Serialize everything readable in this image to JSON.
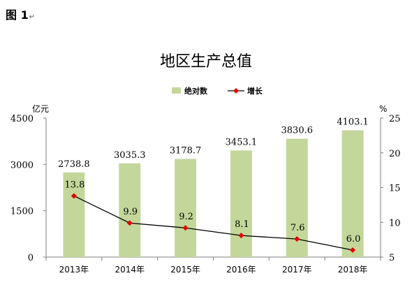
{
  "figure_label": "图 1",
  "figure_mark": "↵",
  "chart_data": {
    "type": "bar",
    "title": "地区生产总值",
    "categories": [
      "2013年",
      "2014年",
      "2015年",
      "2016年",
      "2017年",
      "2018年"
    ],
    "series": [
      {
        "name": "绝对数",
        "type": "bar",
        "axis": "left",
        "color": "#c4d79b",
        "values": [
          2738.8,
          3035.3,
          3178.7,
          3453.1,
          3830.6,
          4103.1
        ],
        "labels": [
          "2738.8",
          "3035.3",
          "3178.7",
          "3453.1",
          "3830.6",
          "4103.1"
        ]
      },
      {
        "name": "增长",
        "type": "line",
        "axis": "right",
        "color": "#000000",
        "marker_color": "#e00000",
        "values": [
          13.8,
          9.9,
          9.2,
          8.1,
          7.6,
          6.0
        ],
        "labels": [
          "13.8",
          "9.9",
          "9.2",
          "8.1",
          "7.6",
          "6.0"
        ]
      }
    ],
    "y_left": {
      "unit": "亿元",
      "ylim": [
        0,
        4500
      ],
      "ticks": [
        "0",
        "1500",
        "3000",
        "4500"
      ]
    },
    "y_right": {
      "unit": "%",
      "ylim": [
        5,
        25
      ],
      "ticks": [
        "5",
        "10",
        "15",
        "20",
        "25"
      ]
    },
    "legend_position": "top-center",
    "grid": false
  }
}
